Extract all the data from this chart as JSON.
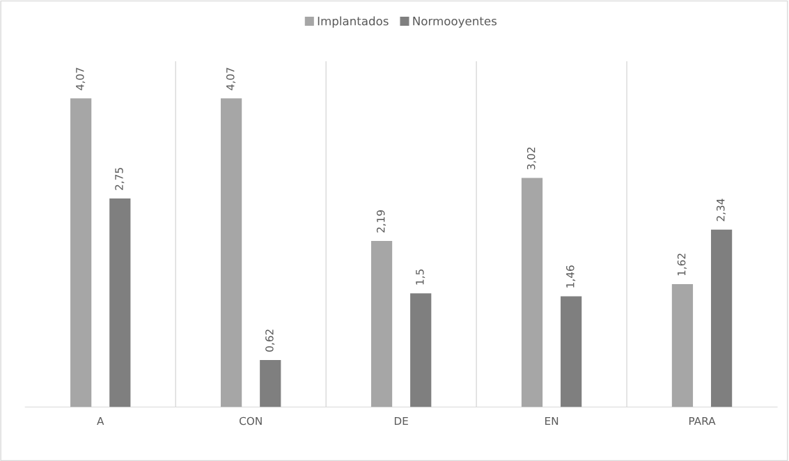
{
  "chart_data": {
    "type": "bar",
    "categories": [
      "A",
      "CON",
      "DE",
      "EN",
      "PARA"
    ],
    "series": [
      {
        "name": "Implantados",
        "color": "#a6a6a6",
        "values": [
          4.07,
          4.07,
          2.19,
          3.02,
          1.62
        ],
        "value_labels": [
          "4,07",
          "4,07",
          "2,19",
          "3,02",
          "1,62"
        ]
      },
      {
        "name": "Normooyentes",
        "color": "#7f7f7f",
        "values": [
          2.75,
          0.62,
          1.5,
          1.46,
          2.34
        ],
        "value_labels": [
          "2,75",
          "0,62",
          "1,5",
          "1,46",
          "2,34"
        ]
      }
    ],
    "grid": "x",
    "legend": "top",
    "tick_labels": "x"
  }
}
